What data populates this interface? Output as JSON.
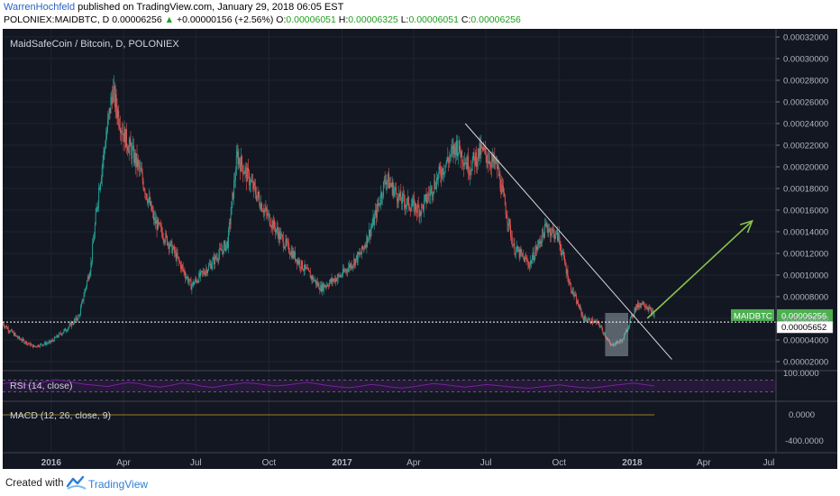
{
  "header": {
    "author": "WarrenHochfeld",
    "published_text": "published on TradingView.com, January 29, 2018 06:05 EST",
    "symbol": "POLONIEX:MAIDBTC, D",
    "last": "0.00006256",
    "change_arrow": "▲",
    "change": "+0.00000156 (+2.56%)",
    "o_label": "O:",
    "o_value": "0.00006051",
    "h_label": "H:",
    "h_value": "0.00006325",
    "l_label": "L:",
    "l_value": "0.00006051",
    "c_label": "C:",
    "c_value": "0.00006256"
  },
  "footer": {
    "created_with": "Created with",
    "brand": "TradingView"
  },
  "colors": {
    "background": "#131722",
    "candle_up": "#26a69a",
    "candle_down": "#ef5350",
    "trendline": "#d9d9d9",
    "projection_arrow": "#8bc34a",
    "rsi": "#7b1fa2",
    "price_label_bg": "#4caf50"
  },
  "chart_data": {
    "type": "candlestick",
    "title": "MaidSafeCoin / Bitcoin, D, POLONIEX",
    "x_ticks": [
      "2016",
      "Apr",
      "Jul",
      "Oct",
      "2017",
      "Apr",
      "Jul",
      "Oct",
      "2018",
      "Apr",
      "Jul"
    ],
    "x_tick_bold": [
      "2016",
      "2017",
      "2018"
    ],
    "y_ticks": [
      "0.00002000",
      "0.00004000",
      "0.00006000",
      "0.00008000",
      "0.00010000",
      "0.00012000",
      "0.00014000",
      "0.00016000",
      "0.00018000",
      "0.00020000",
      "0.00022000",
      "0.00024000",
      "0.00026000",
      "0.00028000",
      "0.00030000",
      "0.00032000"
    ],
    "ylim": [
      1.25e-05,
      0.0003275
    ],
    "date_range": [
      "2015-11-01",
      "2018-07-01"
    ],
    "price_path": [
      [
        "2015-11-01",
        5.5e-05
      ],
      [
        "2015-11-20",
        4.2e-05
      ],
      [
        "2015-12-10",
        3.4e-05
      ],
      [
        "2015-12-31",
        3.8e-05
      ],
      [
        "2016-01-20",
        5e-05
      ],
      [
        "2016-02-05",
        6.2e-05
      ],
      [
        "2016-02-20",
        0.00011
      ],
      [
        "2016-03-01",
        0.00018
      ],
      [
        "2016-03-18",
        0.00027
      ],
      [
        "2016-04-01",
        0.00023
      ],
      [
        "2016-04-20",
        0.0002
      ],
      [
        "2016-05-10",
        0.00015
      ],
      [
        "2016-06-01",
        0.000125
      ],
      [
        "2016-06-25",
        9e-05
      ],
      [
        "2016-07-20",
        0.00011
      ],
      [
        "2016-08-10",
        0.00013
      ],
      [
        "2016-08-22",
        0.00021
      ],
      [
        "2016-09-05",
        0.00019
      ],
      [
        "2016-09-25",
        0.00016
      ],
      [
        "2016-10-20",
        0.00013
      ],
      [
        "2016-11-10",
        0.00011
      ],
      [
        "2016-12-05",
        8.8e-05
      ],
      [
        "2016-12-31",
        0.0001
      ],
      [
        "2017-01-25",
        0.00012
      ],
      [
        "2017-02-10",
        0.00015
      ],
      [
        "2017-02-25",
        0.00019
      ],
      [
        "2017-03-15",
        0.00017
      ],
      [
        "2017-04-10",
        0.00016
      ],
      [
        "2017-05-01",
        0.00019
      ],
      [
        "2017-05-25",
        0.00022
      ],
      [
        "2017-06-10",
        0.0002
      ],
      [
        "2017-06-25",
        0.000215
      ],
      [
        "2017-07-15",
        0.0002
      ],
      [
        "2017-08-05",
        0.000125
      ],
      [
        "2017-08-25",
        0.00011
      ],
      [
        "2017-09-15",
        0.000145
      ],
      [
        "2017-09-30",
        0.000135
      ],
      [
        "2017-10-15",
        9e-05
      ],
      [
        "2017-11-01",
        6e-05
      ],
      [
        "2017-11-20",
        5.5e-05
      ],
      [
        "2017-12-05",
        3.5e-05
      ],
      [
        "2017-12-20",
        4e-05
      ],
      [
        "2018-01-05",
        7e-05
      ],
      [
        "2018-01-15",
        7.5e-05
      ],
      [
        "2018-01-29",
        6.256e-05
      ]
    ],
    "annotations": {
      "trendline": {
        "from": [
          "2017-06-05",
          0.00024
        ],
        "to": [
          "2018-02-20",
          2.2e-05
        ]
      },
      "projection": {
        "from": [
          "2018-01-20",
          6e-05
        ],
        "to": [
          "2018-06-01",
          0.00015
        ]
      },
      "support_line": 5.652e-05,
      "highlight_box": {
        "from": [
          "2017-11-28",
          2.5e-05
        ],
        "to": [
          "2017-12-27",
          6.5e-05
        ]
      }
    },
    "price_labels": {
      "symbol": "MAIDBTC",
      "last_price": "0.00006256",
      "line_price": "0.00005652"
    },
    "rsi": {
      "label": "RSI (14, close)",
      "ticks": [
        "100.0000"
      ],
      "range": [
        0,
        100
      ],
      "levels": [
        70,
        30
      ],
      "values": [
        58,
        62,
        55,
        50,
        65,
        72,
        68,
        60,
        55,
        52,
        48,
        56,
        62,
        58,
        50,
        46,
        52,
        60,
        57,
        49,
        45,
        51,
        56,
        61,
        59,
        54,
        50,
        53,
        58,
        62,
        57,
        51,
        47,
        44,
        49,
        55,
        52,
        46,
        43,
        47,
        53,
        58,
        55,
        50,
        46,
        50,
        55,
        52,
        48,
        45,
        42,
        46,
        50,
        54,
        49,
        45,
        43,
        47,
        52,
        56,
        60,
        55,
        50
      ]
    },
    "macd": {
      "label": "MACD (12, 26, close, 9)",
      "ticks": [
        "0.0000",
        "-400.0000"
      ]
    }
  }
}
